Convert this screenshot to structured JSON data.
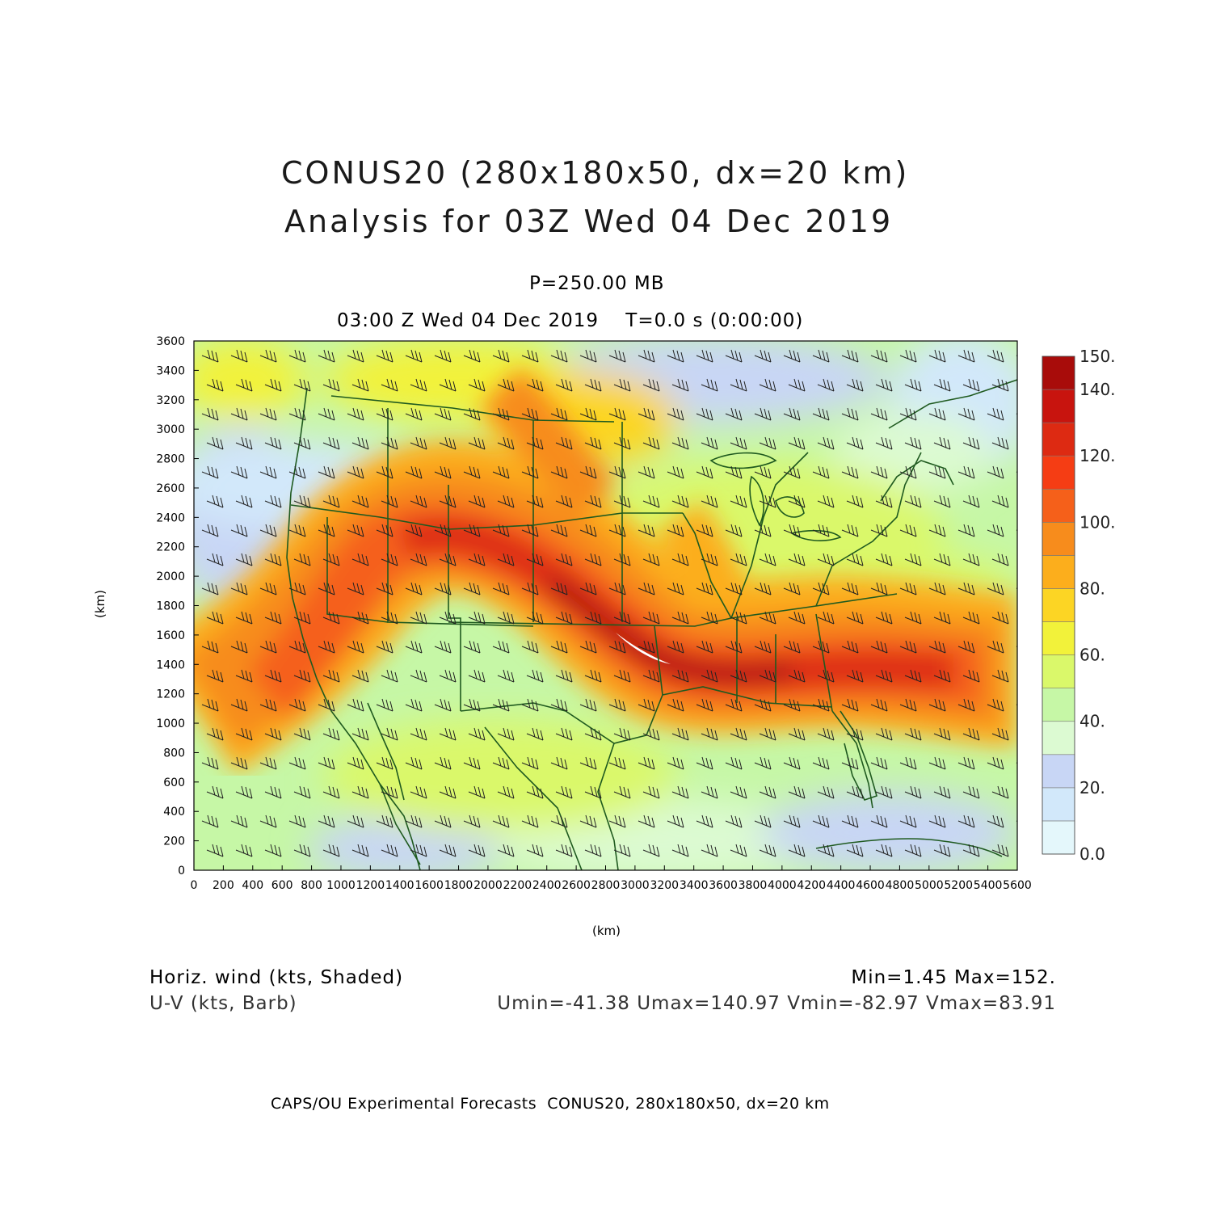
{
  "title": {
    "line1": "CONUS20 (280x180x50, dx=20 km)",
    "line2": "Analysis for 03Z Wed 04 Dec 2019"
  },
  "subtitle": {
    "level": "P=250.00 MB",
    "time": "03:00 Z Wed 04 Dec 2019    T=0.0 s (0:00:00)"
  },
  "axes": {
    "x_label": "(km)",
    "y_label": "(km)",
    "x_ticks": [
      "0",
      "200",
      "400",
      "600",
      "800",
      "1000",
      "1200",
      "1400",
      "1600",
      "1800",
      "2000",
      "2200",
      "2400",
      "2600",
      "2800",
      "3000",
      "3200",
      "3400",
      "3600",
      "3800",
      "4000",
      "4200",
      "4400",
      "4600",
      "4800",
      "5000",
      "5200",
      "5400",
      "5600"
    ],
    "y_ticks": [
      "0",
      "200",
      "400",
      "600",
      "800",
      "1000",
      "1200",
      "1400",
      "1600",
      "1800",
      "2000",
      "2200",
      "2400",
      "2600",
      "2800",
      "3000",
      "3200",
      "3400",
      "3600"
    ],
    "x_range": [
      0,
      5600
    ],
    "y_range": [
      0,
      3600
    ]
  },
  "colorbar": {
    "labels": [
      "0.0",
      "20.",
      "40.",
      "60.",
      "80.",
      "100.",
      "120.",
      "140.",
      "150."
    ],
    "levels": [
      0,
      10,
      20,
      30,
      40,
      50,
      60,
      70,
      80,
      90,
      100,
      110,
      120,
      130,
      140,
      150
    ],
    "colors": [
      "#e4f7fb",
      "#d2e8fa",
      "#c8d6f5",
      "#dcfad2",
      "#c6f7a6",
      "#daf86a",
      "#f2f23a",
      "#fcd524",
      "#fcae1c",
      "#f78c1c",
      "#f5601a",
      "#f53d14",
      "#dd2a12",
      "#c8140e",
      "#a80c0a"
    ]
  },
  "stats": {
    "field_desc": "Horiz. wind (kts, Shaded)",
    "barb_desc": "U-V (kts, Barb)",
    "minmax": "Min=1.45 Max=152.",
    "uv": "Umin=-41.38 Umax=140.97 Vmin=-82.97 Vmax=83.91"
  },
  "footer": "CAPS/OU Experimental Forecasts  CONUS20, 280x180x50, dx=20 km",
  "map": {
    "jet_core_km": [
      [
        0,
        1150
      ],
      [
        700,
        1300
      ],
      [
        1400,
        2200
      ],
      [
        2200,
        2000
      ],
      [
        3000,
        1500
      ],
      [
        3800,
        1300
      ],
      [
        4800,
        1350
      ],
      [
        5600,
        1250
      ]
    ],
    "border_color": "#1f5a1f"
  }
}
